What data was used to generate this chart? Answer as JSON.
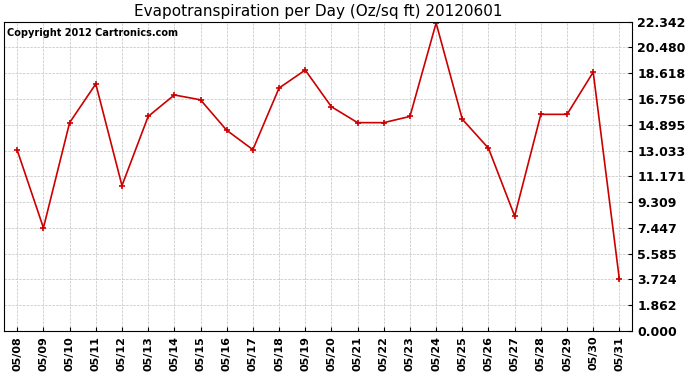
{
  "title": "Evapotranspiration per Day (Oz/sq ft) 20120601",
  "copyright": "Copyright 2012 Cartronics.com",
  "x_labels": [
    "05/08",
    "05/09",
    "05/10",
    "05/11",
    "05/12",
    "05/13",
    "05/14",
    "05/15",
    "05/16",
    "05/17",
    "05/18",
    "05/19",
    "05/20",
    "05/21",
    "05/22",
    "05/23",
    "05/24",
    "05/25",
    "05/26",
    "05/27",
    "05/28",
    "05/29",
    "05/30",
    "05/31"
  ],
  "y_values": [
    13.05,
    7.45,
    15.05,
    17.85,
    10.5,
    15.5,
    17.05,
    16.7,
    14.5,
    13.1,
    17.55,
    18.85,
    16.2,
    15.05,
    15.05,
    15.5,
    22.25,
    15.3,
    13.2,
    8.3,
    15.65,
    15.65,
    18.7,
    3.72
  ],
  "y_ticks": [
    0.0,
    1.862,
    3.724,
    5.585,
    7.447,
    9.309,
    11.171,
    13.033,
    14.895,
    16.756,
    18.618,
    20.48,
    22.342
  ],
  "y_lim": [
    0,
    22.342
  ],
  "line_color": "#cc0000",
  "marker": "+",
  "marker_size": 5,
  "background_color": "#ffffff",
  "grid_color": "#c0c0c0",
  "title_fontsize": 11,
  "copyright_fontsize": 7,
  "tick_fontsize": 9,
  "x_tick_fontsize": 8
}
